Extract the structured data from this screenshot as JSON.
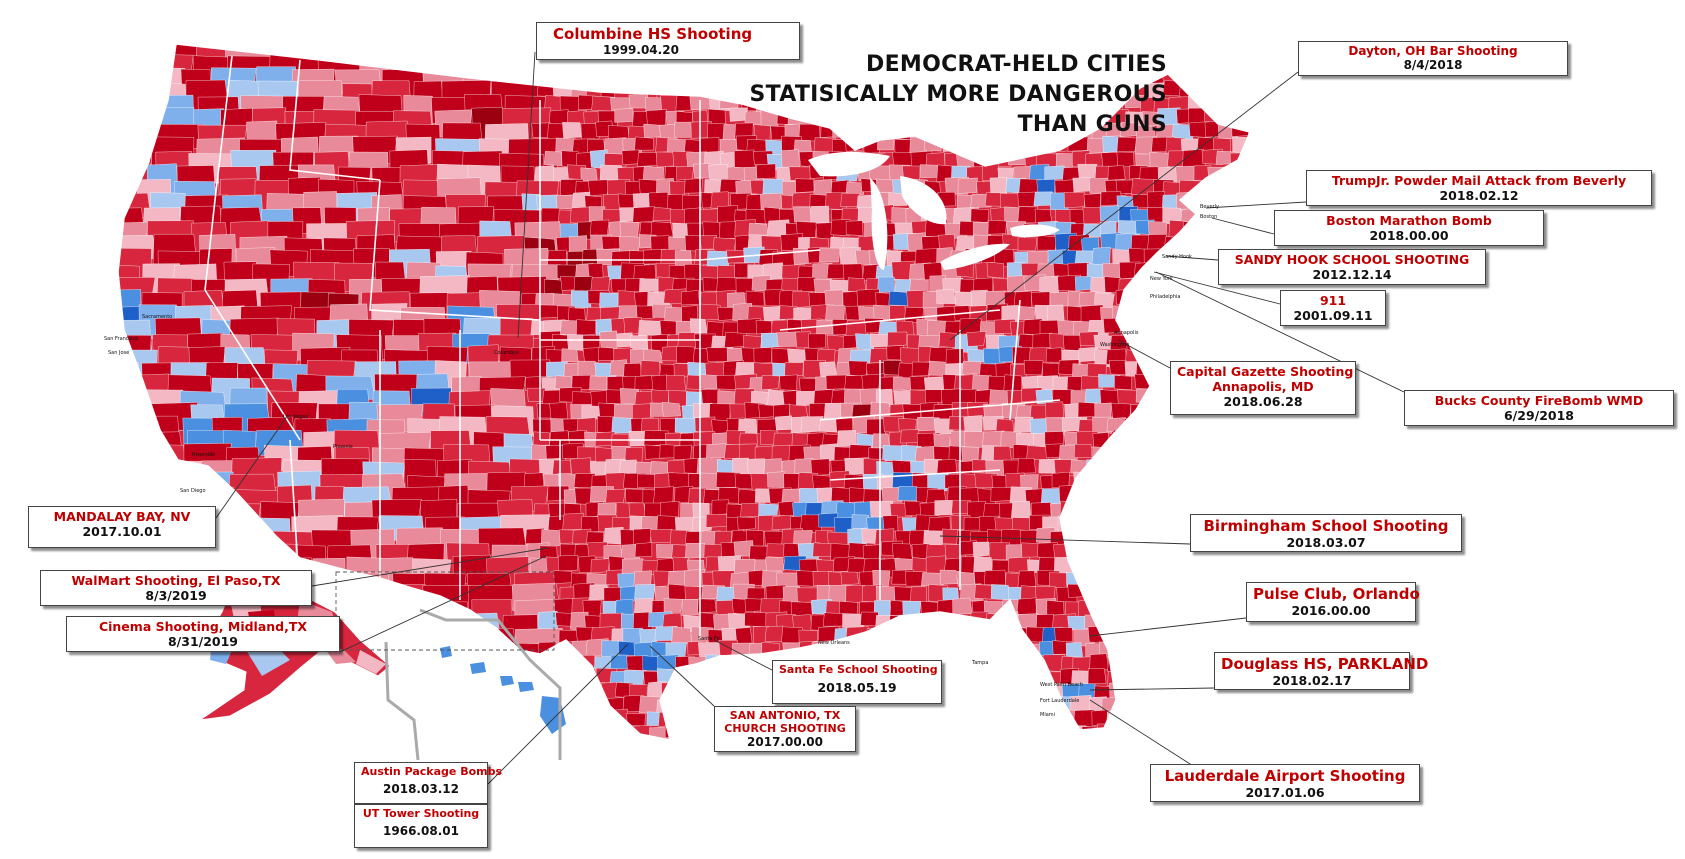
{
  "title_lines": [
    "DEMOCRAT-HELD CITIES",
    "STATISICALLY MORE DANGEROUS",
    "THAN GUNS"
  ],
  "map_colors": {
    "strong_rep": "#c0001a",
    "rep": "#d7263d",
    "lean_rep": "#e88a9a",
    "light_rep": "#f3b8c3",
    "light_dem": "#a8c8f0",
    "lean_dem": "#7fb0ec",
    "dem": "#4a8fe0",
    "strong_dem": "#1e5fc8"
  },
  "city_labels": [
    "Columbus",
    "Las Vegas",
    "San Francisco",
    "San Jose",
    "Sacramento",
    "Riverside",
    "San Diego",
    "Phoenix",
    "Santa Fe",
    "New Orleans",
    "Tampa",
    "West Palm Beach",
    "Fort Lauderdale",
    "Miami",
    "Beverly",
    "Boston",
    "Sandy Hook",
    "New York",
    "Philadelphia",
    "Washington",
    "Annapolis"
  ],
  "events": [
    {
      "id": "columbine",
      "title": "Columbine HS Shooting",
      "date": "1999.04.20"
    },
    {
      "id": "dayton",
      "title": "Dayton, OH Bar Shooting",
      "date": "8/4/2018"
    },
    {
      "id": "trumpjr",
      "title": "TrumpJr. Powder Mail Attack from Beverly",
      "date": "2018.02.12"
    },
    {
      "id": "boston",
      "title": "Boston Marathon Bomb",
      "date": "2018.00.00"
    },
    {
      "id": "sandyhook",
      "title": "SANDY HOOK SCHOOL SHOOTING",
      "date": "2012.12.14"
    },
    {
      "id": "nine11",
      "title": "911",
      "date": "2001.09.11"
    },
    {
      "id": "capgaz",
      "title": "Capital Gazette Shooting",
      "subtitle": "Annapolis, MD",
      "date": "2018.06.28"
    },
    {
      "id": "bucks",
      "title": "Bucks County FireBomb WMD",
      "date": "6/29/2018"
    },
    {
      "id": "mandalay",
      "title": "MANDALAY BAY, NV",
      "date": "2017.10.01"
    },
    {
      "id": "elpaso",
      "title": "WalMart Shooting, El Paso,TX",
      "date": "8/3/2019"
    },
    {
      "id": "midland",
      "title": "Cinema Shooting, Midland,TX",
      "date": "8/31/2019"
    },
    {
      "id": "birmingham",
      "title": "Birmingham School Shooting",
      "date": "2018.03.07"
    },
    {
      "id": "pulse",
      "title": "Pulse Club, Orlando",
      "date": "2016.00.00"
    },
    {
      "id": "parkland",
      "title": "Douglass HS, PARKLAND",
      "date": "2018.02.17"
    },
    {
      "id": "santafe",
      "title": "Santa Fe School Shooting",
      "date": "2018.05.19"
    },
    {
      "id": "sanantonio",
      "title": "SAN ANTONIO, TX",
      "subtitle": "CHURCH SHOOTING",
      "date": "2017.00.00"
    },
    {
      "id": "austin",
      "title": "Austin Package Bombs",
      "date": "2018.03.12"
    },
    {
      "id": "uttower",
      "title": "UT Tower Shooting",
      "date": "1966.08.01"
    },
    {
      "id": "lauderdale",
      "title": "Lauderdale Airport Shooting",
      "date": "2017.01.06"
    }
  ]
}
